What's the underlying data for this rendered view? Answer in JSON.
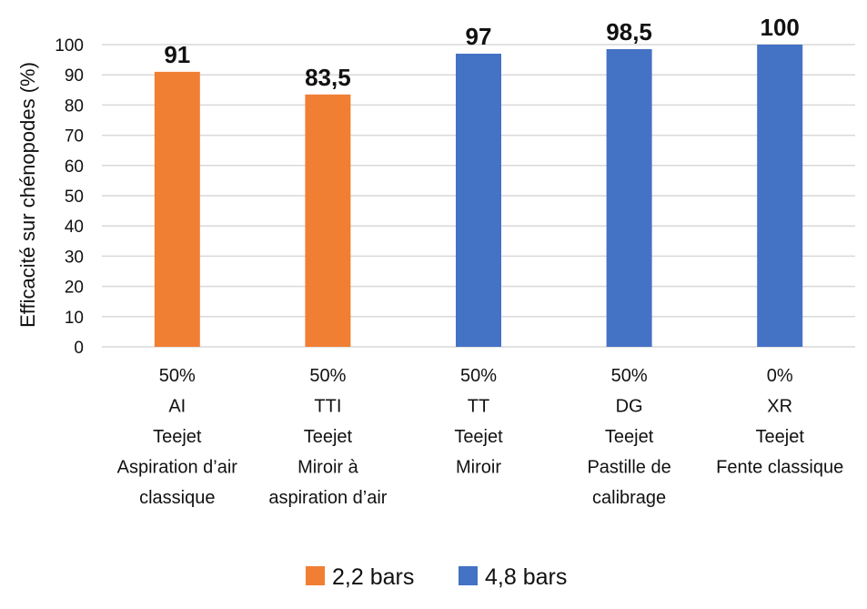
{
  "chart_data": {
    "type": "bar",
    "ylabel": "Efficacité sur chénopodes (%)",
    "ylim": [
      0,
      100
    ],
    "yticks": [
      0,
      10,
      20,
      30,
      40,
      50,
      60,
      70,
      80,
      90,
      100
    ],
    "grid": true,
    "legend_position": "bottom",
    "categories": [
      [
        "50%",
        "AI",
        "Teejet",
        "Aspiration d’air",
        "classique"
      ],
      [
        "50%",
        "TTI",
        "Teejet",
        "Miroir à",
        "aspiration d’air"
      ],
      [
        "50%",
        "TT",
        "Teejet",
        "Miroir"
      ],
      [
        "50%",
        "DG",
        "Teejet",
        "Pastille de",
        "calibrage"
      ],
      [
        "0%",
        "XR",
        "Teejet",
        "Fente classique"
      ]
    ],
    "values": [
      91,
      83.5,
      97,
      98.5,
      100
    ],
    "data_labels": [
      "91",
      "83,5",
      "97",
      "98,5",
      "100"
    ],
    "bar_series": [
      "2,2 bars",
      "2,2 bars",
      "4,8 bars",
      "4,8 bars",
      "4,8 bars"
    ],
    "series": [
      {
        "name": "2,2 bars",
        "color": "#f07f34"
      },
      {
        "name": "4,8 bars",
        "color": "#4472c4"
      }
    ]
  }
}
